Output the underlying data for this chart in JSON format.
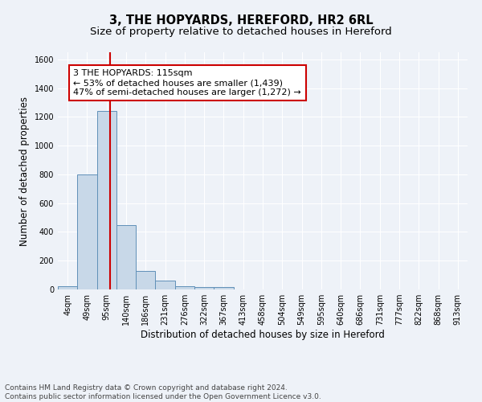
{
  "title": "3, THE HOPYARDS, HEREFORD, HR2 6RL",
  "subtitle": "Size of property relative to detached houses in Hereford",
  "xlabel": "Distribution of detached houses by size in Hereford",
  "ylabel": "Number of detached properties",
  "bar_labels": [
    "4sqm",
    "49sqm",
    "95sqm",
    "140sqm",
    "186sqm",
    "231sqm",
    "276sqm",
    "322sqm",
    "367sqm",
    "413sqm",
    "458sqm",
    "504sqm",
    "549sqm",
    "595sqm",
    "640sqm",
    "686sqm",
    "731sqm",
    "777sqm",
    "822sqm",
    "868sqm",
    "913sqm"
  ],
  "bar_heights": [
    25,
    800,
    1240,
    450,
    130,
    60,
    25,
    15,
    15,
    0,
    0,
    0,
    0,
    0,
    0,
    0,
    0,
    0,
    0,
    0,
    0
  ],
  "bar_color": "#c8d8e8",
  "bar_edge_color": "#6090b8",
  "ylim": [
    0,
    1650
  ],
  "yticks": [
    0,
    200,
    400,
    600,
    800,
    1000,
    1200,
    1400,
    1600
  ],
  "red_line_x": 2.18,
  "red_line_color": "#cc0000",
  "annotation_line1": "3 THE HOPYARDS: 115sqm",
  "annotation_line2": "← 53% of detached houses are smaller (1,439)",
  "annotation_line3": "47% of semi-detached houses are larger (1,272) →",
  "annotation_box_color": "#ffffff",
  "annotation_edge_color": "#cc0000",
  "footer_text": "Contains HM Land Registry data © Crown copyright and database right 2024.\nContains public sector information licensed under the Open Government Licence v3.0.",
  "background_color": "#eef2f8",
  "grid_color": "#ffffff",
  "title_fontsize": 10.5,
  "subtitle_fontsize": 9.5,
  "axis_label_fontsize": 8.5,
  "tick_fontsize": 7,
  "annotation_fontsize": 8,
  "footer_fontsize": 6.5
}
